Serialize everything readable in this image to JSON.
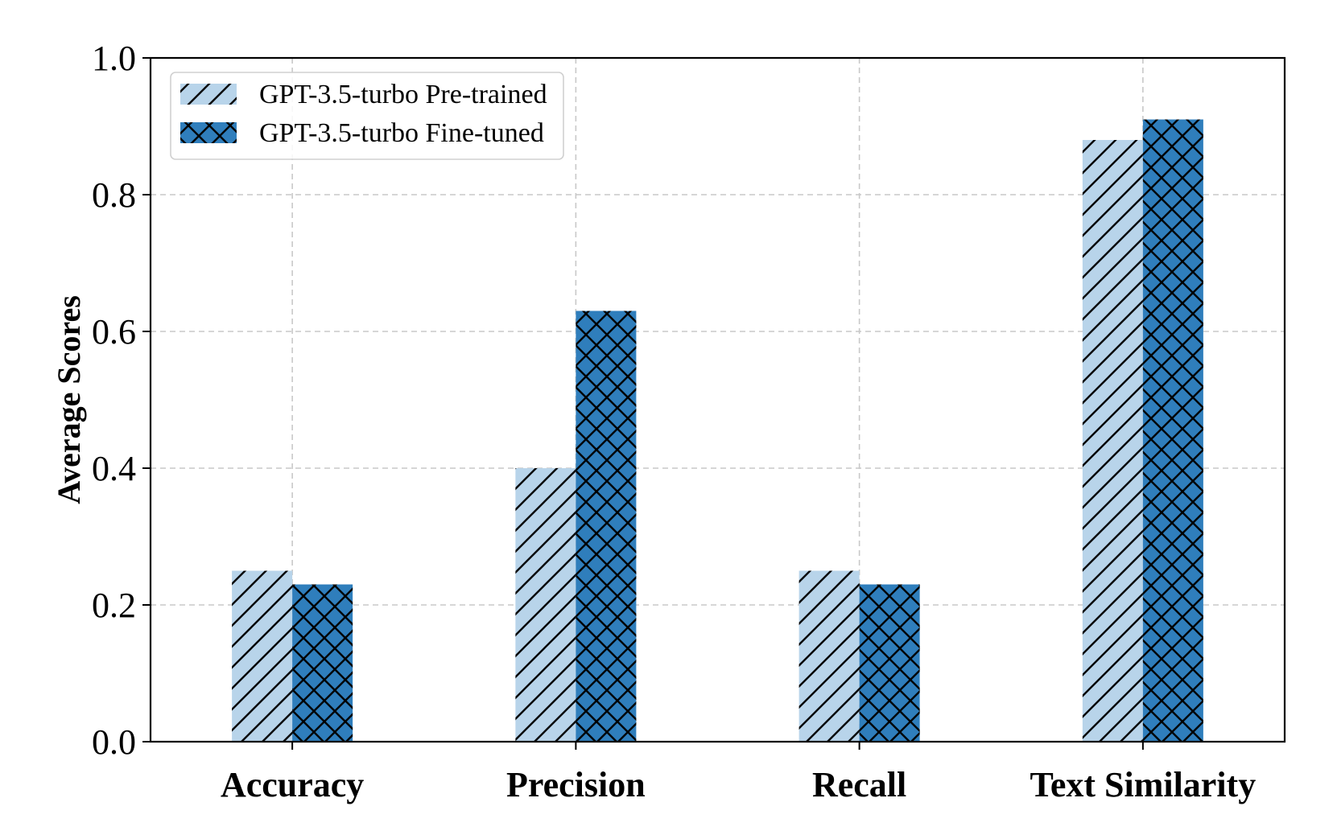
{
  "chart_data": {
    "type": "bar",
    "title": "",
    "xlabel": "",
    "ylabel": "Average Scores",
    "ylim": [
      0,
      1.0
    ],
    "yticks": [
      "0.0",
      "0.2",
      "0.4",
      "0.6",
      "0.8",
      "1.0"
    ],
    "grid": true,
    "legend_position": "top-left",
    "categories": [
      "Accuracy",
      "Precision",
      "Recall",
      "Text Similarity"
    ],
    "series": [
      {
        "name": "GPT-3.5-turbo Pre-trained",
        "values": [
          0.25,
          0.4,
          0.25,
          0.88
        ],
        "color": "#b8d4ea",
        "hatch": "diagonal"
      },
      {
        "name": "GPT-3.5-turbo Fine-tuned",
        "values": [
          0.23,
          0.63,
          0.23,
          0.91
        ],
        "color": "#2f7ebc",
        "hatch": "cross"
      }
    ]
  }
}
